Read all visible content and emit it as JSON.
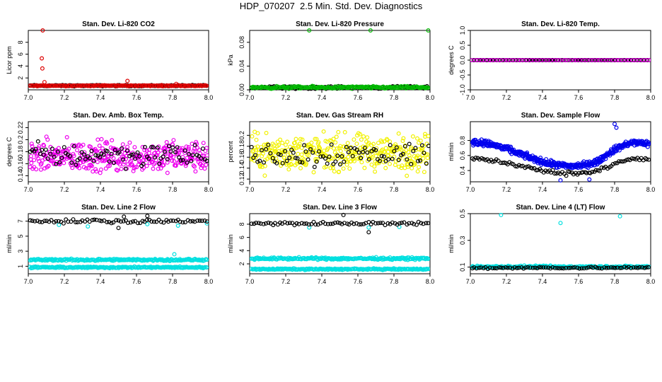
{
  "figure_title": "HDP_070207  2.5 Min. Std. Dev. Diagnostics",
  "chart_data": [
    {
      "id": "p1",
      "type": "scatter",
      "title": "Stan. Dev. Li-820 CO2",
      "xlabel": "",
      "ylabel": "Licor ppm",
      "xlim": [
        7.0,
        8.0
      ],
      "ylim": [
        0,
        10
      ],
      "xticks": [
        "7.0",
        "7.2",
        "7.4",
        "7.6",
        "7.8",
        "8.0"
      ],
      "yticks": [
        2,
        4,
        6,
        8
      ],
      "series": [
        {
          "name": "black",
          "color": "#000000",
          "pattern": {
            "base": 0.7,
            "noise": 0.15,
            "n": 160
          }
        },
        {
          "name": "red",
          "color": "#dd0000",
          "pattern": {
            "base": 0.7,
            "noise": 0.12,
            "n": 170
          },
          "points": [
            [
              7.08,
              10.2
            ],
            [
              7.075,
              5.3
            ],
            [
              7.078,
              3.6
            ],
            [
              7.09,
              1.3
            ],
            [
              7.55,
              1.5
            ],
            [
              7.82,
              1.0
            ]
          ]
        }
      ]
    },
    {
      "id": "p2",
      "type": "scatter",
      "title": "Stan. Dev. Li-820 Pressure",
      "xlabel": "",
      "ylabel": "kPa",
      "xlim": [
        7.0,
        8.0
      ],
      "ylim": [
        0,
        0.1
      ],
      "xticks": [
        "7.0",
        "7.2",
        "7.4",
        "7.6",
        "7.8",
        "8.0"
      ],
      "yticks": [
        0.0,
        0.04,
        0.08
      ],
      "series": [
        {
          "name": "black",
          "color": "#000000",
          "pattern": {
            "base": 0.004,
            "noise": 0.003,
            "n": 150
          }
        },
        {
          "name": "green",
          "color": "#00bb00",
          "pattern": {
            "base": 0.004,
            "noise": 0.003,
            "n": 190
          },
          "points": [
            [
              7.33,
              0.1
            ],
            [
              7.67,
              0.1
            ],
            [
              7.99,
              0.1
            ]
          ]
        }
      ]
    },
    {
      "id": "p3",
      "type": "scatter",
      "title": "Stan. Dev. Li-820 Temp.",
      "xlabel": "",
      "ylabel": "degrees C",
      "xlim": [
        7.0,
        8.0
      ],
      "ylim": [
        -1,
        1
      ],
      "xticks": [
        "7.0",
        "7.2",
        "7.4",
        "7.6",
        "7.8",
        "8.0"
      ],
      "yticks": [
        -1.0,
        -0.5,
        0.0,
        0.5,
        1.0
      ],
      "series": [
        {
          "name": "black",
          "color": "#000000",
          "pattern": {
            "base": 0.0,
            "noise": 0,
            "n": 110
          }
        },
        {
          "name": "magenta",
          "color": "#ee00ee",
          "pattern": {
            "base": 0.0,
            "noise": 0,
            "n": 55
          }
        }
      ]
    },
    {
      "id": "p4",
      "type": "scatter",
      "title": "Stan. Dev. Amb. Box Temp.",
      "xlabel": "",
      "ylabel": "degrees C",
      "xlim": [
        7.0,
        8.0
      ],
      "ylim": [
        0.13,
        0.23
      ],
      "xticks": [
        "7.0",
        "7.2",
        "7.4",
        "7.6",
        "7.8",
        "8.0"
      ],
      "yticks": [
        0.14,
        0.16,
        0.18,
        0.2,
        0.22
      ],
      "series": [
        {
          "name": "magenta",
          "color": "#ee00ee",
          "pattern": {
            "base": 0.172,
            "noise": 0.038,
            "n": 380
          }
        },
        {
          "name": "black",
          "color": "#000000",
          "pattern": {
            "base": 0.175,
            "noise": 0.03,
            "n": 90
          }
        }
      ]
    },
    {
      "id": "p5",
      "type": "scatter",
      "title": "Stan. Dev. Gas Stream RH",
      "xlabel": "",
      "ylabel": "percent",
      "xlim": [
        7.0,
        8.0
      ],
      "ylim": [
        0.115,
        0.225
      ],
      "xticks": [
        "7.0",
        "7.2",
        "7.4",
        "7.6",
        "7.8",
        "8.0"
      ],
      "yticks": [
        0.12,
        0.14,
        0.16,
        0.18,
        0.2
      ],
      "series": [
        {
          "name": "yellow",
          "color": "#f2f200",
          "pattern": {
            "base": 0.168,
            "noise": 0.048,
            "n": 380
          }
        },
        {
          "name": "black",
          "color": "#000000",
          "pattern": {
            "base": 0.166,
            "noise": 0.035,
            "n": 85
          }
        }
      ]
    },
    {
      "id": "p6",
      "type": "scatter",
      "title": "Stan. Dev. Sample Flow",
      "xlabel": "",
      "ylabel": "ml/min",
      "xlim": [
        7.0,
        8.0
      ],
      "ylim": [
        0.25,
        1.05
      ],
      "xticks": [
        "7.0",
        "7.2",
        "7.4",
        "7.6",
        "7.8",
        "8.0"
      ],
      "yticks": [
        0.4,
        0.6,
        0.8
      ],
      "series": [
        {
          "name": "blue",
          "color": "#0000ee",
          "pattern": {
            "shape": "wave",
            "base": 0.62,
            "amp": 0.2,
            "noise": 0.06,
            "n": 460
          },
          "points": [
            [
              7.8,
              1.02
            ],
            [
              7.81,
              0.97
            ],
            [
              7.5,
              0.27
            ],
            [
              7.66,
              0.28
            ]
          ]
        },
        {
          "name": "black",
          "color": "#000000",
          "pattern": {
            "shape": "wave",
            "base": 0.46,
            "amp": 0.12,
            "noise": 0.04,
            "n": 95
          }
        }
      ]
    },
    {
      "id": "p7",
      "type": "scatter",
      "title": "Stan. Dev. Line 2 Flow",
      "xlabel": "",
      "ylabel": "ml/min",
      "xlim": [
        7.0,
        8.0
      ],
      "ylim": [
        0,
        8
      ],
      "xticks": [
        "7.0",
        "7.2",
        "7.4",
        "7.6",
        "7.8",
        "8.0"
      ],
      "yticks": [
        1,
        3,
        5,
        7
      ],
      "series": [
        {
          "name": "cyan-upper",
          "color": "#00e0e0",
          "pattern": {
            "base": 1.85,
            "noise": 0.2,
            "n": 230
          },
          "points": [
            [
              7.81,
              2.6
            ],
            [
              7.17,
              6.5
            ],
            [
              7.33,
              6.3
            ],
            [
              7.66,
              6.6
            ],
            [
              7.83,
              6.4
            ],
            [
              7.99,
              6.7
            ]
          ]
        },
        {
          "name": "cyan-lower",
          "color": "#00e0e0",
          "pattern": {
            "base": 0.85,
            "noise": 0.15,
            "n": 230
          }
        },
        {
          "name": "black",
          "color": "#000000",
          "pattern": {
            "base": 7.0,
            "noise": 0.35,
            "n": 75
          },
          "points": [
            [
              7.5,
              6.1
            ],
            [
              7.53,
              7.6
            ],
            [
              7.66,
              7.7
            ]
          ]
        }
      ]
    },
    {
      "id": "p8",
      "type": "scatter",
      "title": "Stan. Dev. Line 3 Flow",
      "xlabel": "",
      "ylabel": "ml/min",
      "xlim": [
        7.0,
        8.0
      ],
      "ylim": [
        0.5,
        9.6
      ],
      "xticks": [
        "7.0",
        "7.2",
        "7.4",
        "7.6",
        "7.8",
        "8.0"
      ],
      "yticks": [
        2,
        4,
        6,
        8
      ],
      "series": [
        {
          "name": "cyan-upper",
          "color": "#00e0e0",
          "pattern": {
            "base": 2.8,
            "noise": 0.25,
            "n": 230
          }
        },
        {
          "name": "cyan-lower",
          "color": "#00e0e0",
          "pattern": {
            "base": 1.2,
            "noise": 0.15,
            "n": 230
          },
          "points": [
            [
              7.33,
              7.5
            ],
            [
              7.66,
              7.5
            ],
            [
              7.83,
              7.6
            ]
          ]
        },
        {
          "name": "black",
          "color": "#000000",
          "pattern": {
            "base": 8.1,
            "noise": 0.35,
            "n": 75
          },
          "points": [
            [
              7.66,
              6.8
            ],
            [
              7.52,
              9.4
            ]
          ]
        }
      ]
    },
    {
      "id": "p9",
      "type": "scatter",
      "title": "Stan. Dev. Line 4 (LT) Flow",
      "xlabel": "",
      "ylabel": "ml/min",
      "xlim": [
        7.0,
        8.0
      ],
      "ylim": [
        0.05,
        0.5
      ],
      "xticks": [
        "7.0",
        "7.2",
        "7.4",
        "7.6",
        "7.8",
        "8.0"
      ],
      "yticks": [
        0.1,
        0.3,
        0.5
      ],
      "series": [
        {
          "name": "cyan",
          "color": "#00e0e0",
          "pattern": {
            "base": 0.102,
            "noise": 0.012,
            "n": 230
          },
          "points": [
            [
              7.17,
              0.49
            ],
            [
              7.5,
              0.43
            ],
            [
              7.83,
              0.48
            ]
          ]
        },
        {
          "name": "black",
          "color": "#000000",
          "pattern": {
            "base": 0.095,
            "noise": 0.01,
            "n": 80
          }
        }
      ]
    }
  ]
}
